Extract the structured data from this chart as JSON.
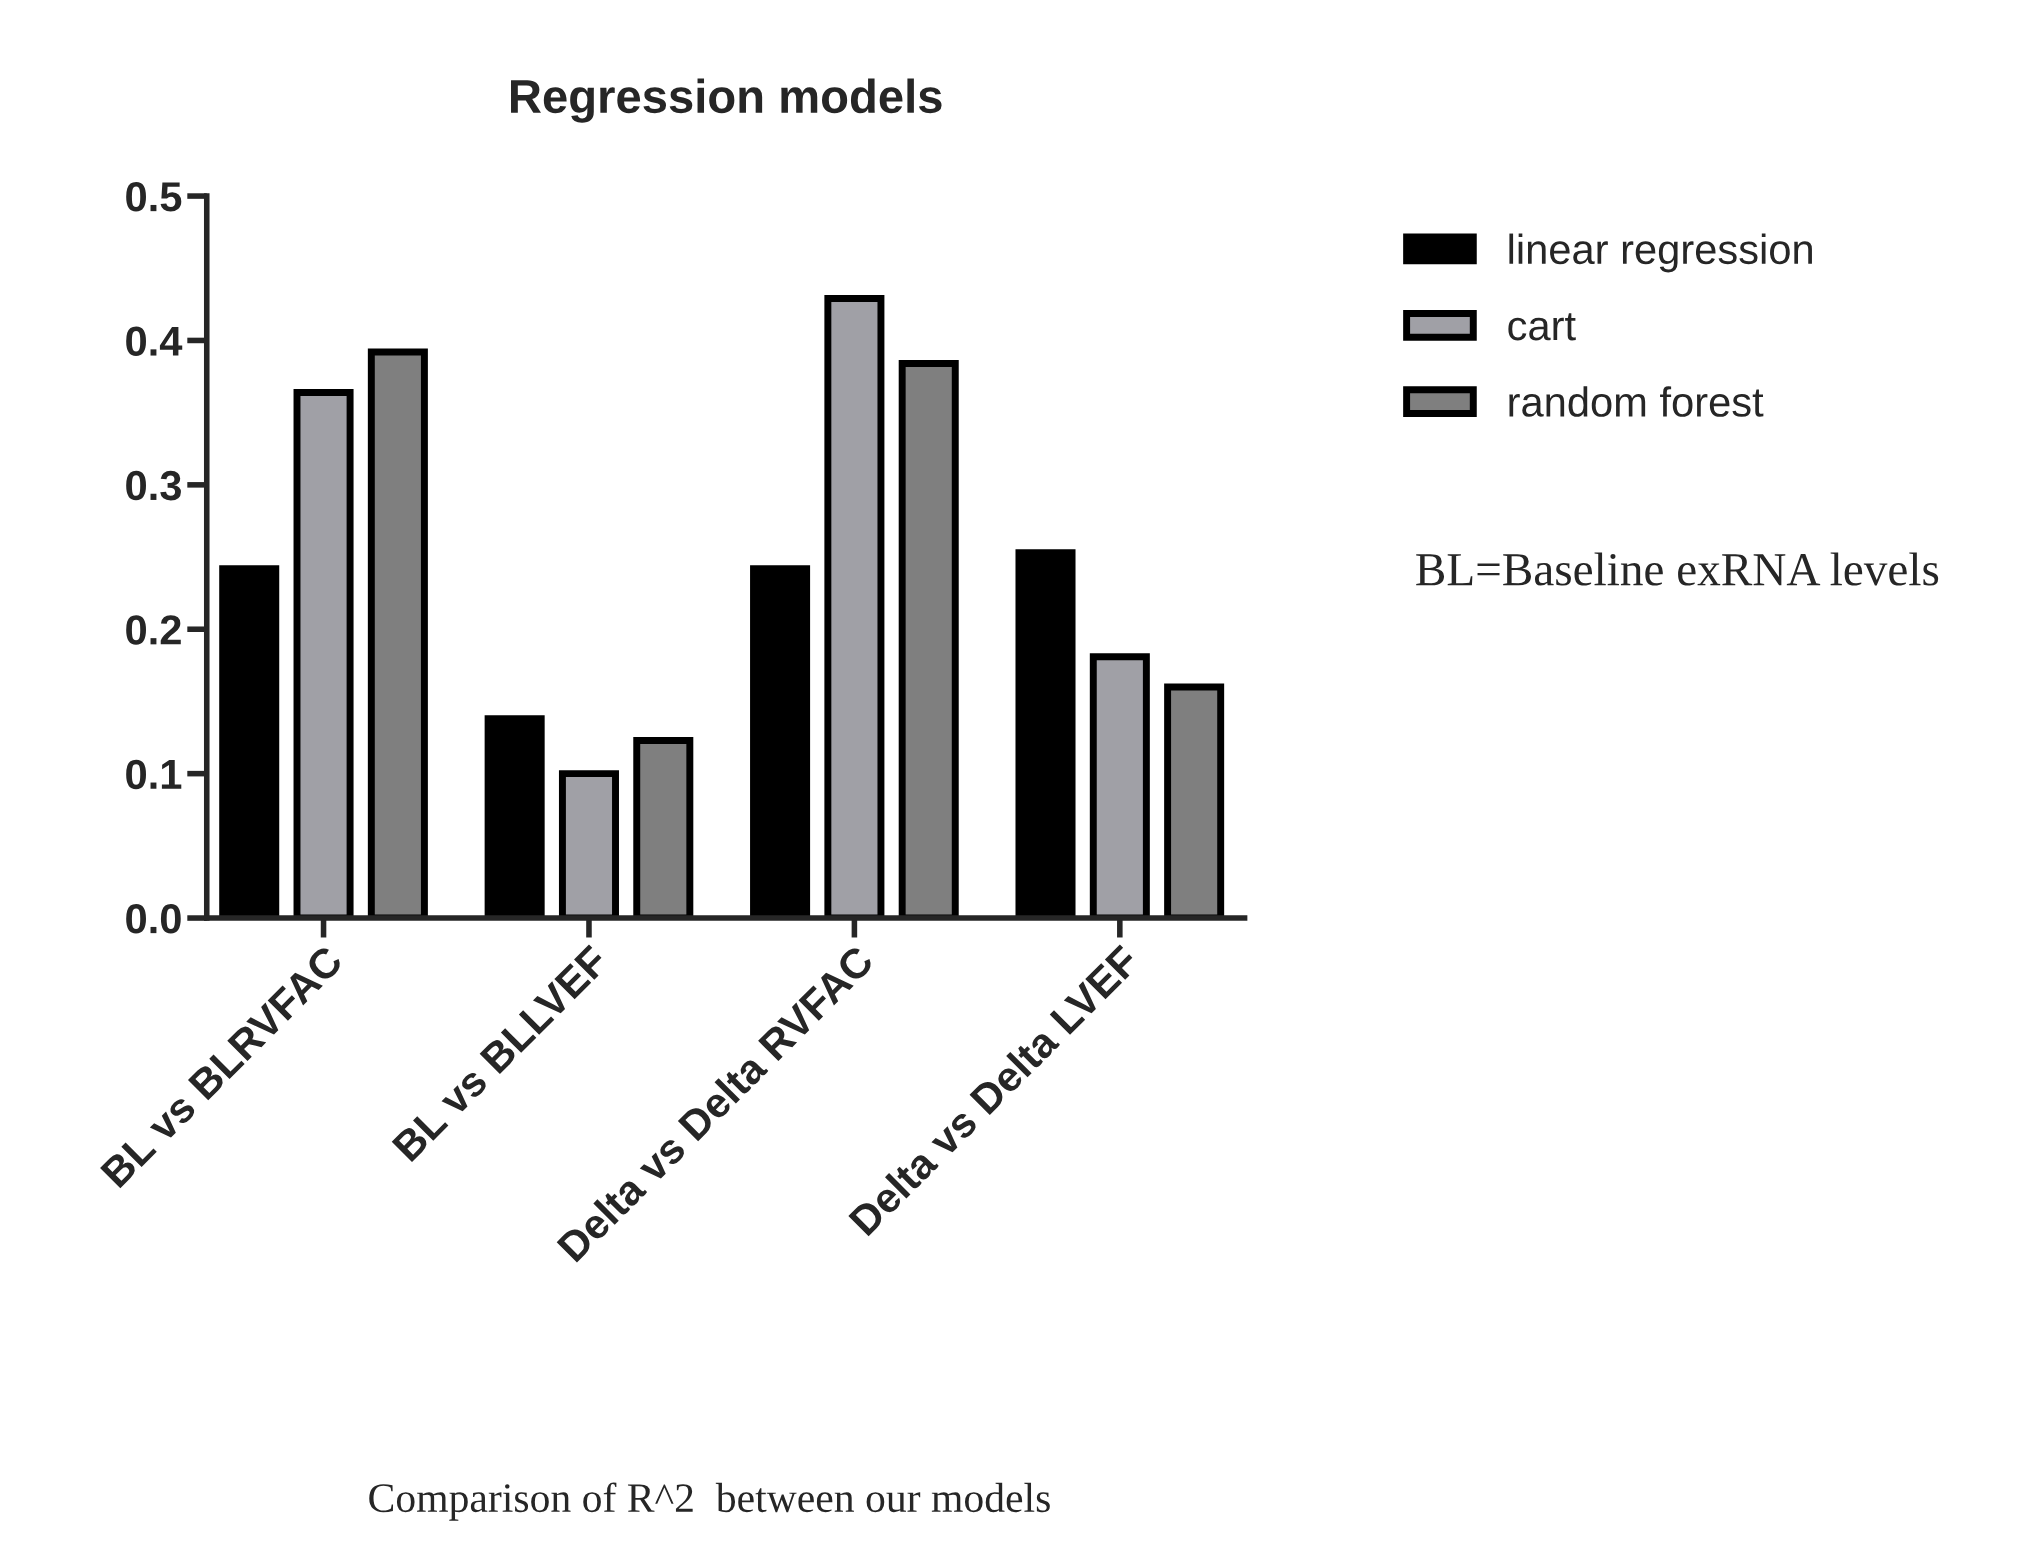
{
  "chart_data": {
    "type": "bar",
    "title": "Regression models",
    "categories": [
      "BL vs BLRVFAC",
      "BL vs BLLVEF",
      "Delta vs Delta RVFAC",
      "Delta vs Delta LVEF"
    ],
    "series": [
      {
        "name": "linear regression",
        "color": "#000000",
        "values": [
          0.242,
          0.138,
          0.242,
          0.253
        ]
      },
      {
        "name": "cart",
        "color": "#a0a0a6",
        "values": [
          0.364,
          0.1,
          0.429,
          0.181
        ]
      },
      {
        "name": "random forest",
        "color": "#7f7f7f",
        "values": [
          0.392,
          0.123,
          0.384,
          0.16
        ]
      }
    ],
    "ylim": [
      0,
      0.5
    ],
    "yticks": [
      {
        "value": 0,
        "label": "0.0"
      },
      0.1,
      0.2,
      0.3,
      0.4,
      0.5
    ],
    "grid": false,
    "legend": "top right",
    "annotations": [
      "BL=Baseline exRNA levels",
      "Comparison of R^2  between our models"
    ]
  }
}
